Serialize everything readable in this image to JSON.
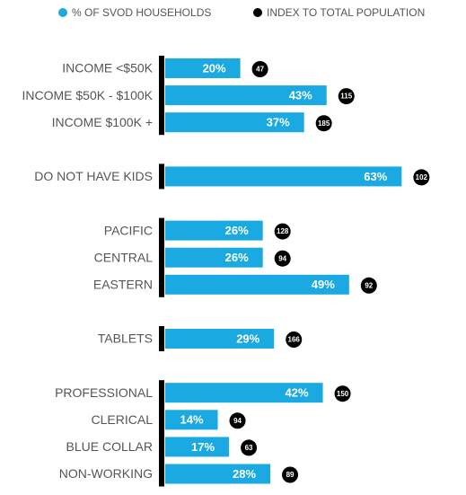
{
  "chart_data": {
    "type": "bar",
    "orientation": "horizontal",
    "categories": [
      "INCOME <$50K",
      "INCOME $50K - $100K",
      "INCOME $100K +",
      null,
      "DO NOT HAVE KIDS",
      null,
      "PACIFIC",
      "CENTRAL",
      "EASTERN",
      null,
      "TABLETS",
      null,
      "PROFESSIONAL",
      "CLERICAL",
      "BLUE COLLAR",
      "NON-WORKING"
    ],
    "series": [
      {
        "name": "% OF SVOD HOUSEHOLDS",
        "color": "#1aa9e1",
        "values": [
          20,
          43,
          37,
          null,
          63,
          null,
          26,
          26,
          49,
          null,
          29,
          null,
          42,
          14,
          17,
          28
        ],
        "value_labels": [
          "20%",
          "43%",
          "37%",
          null,
          "63%",
          null,
          "26%",
          "26%",
          "49%",
          null,
          "29%",
          null,
          "42%",
          "14%",
          "17%",
          "28%"
        ]
      },
      {
        "name": "INDEX TO TOTAL POPULATION",
        "color": "#000000",
        "values": [
          47,
          115,
          185,
          null,
          102,
          null,
          128,
          94,
          92,
          null,
          166,
          null,
          150,
          94,
          63,
          89
        ]
      }
    ],
    "legend": "top"
  }
}
